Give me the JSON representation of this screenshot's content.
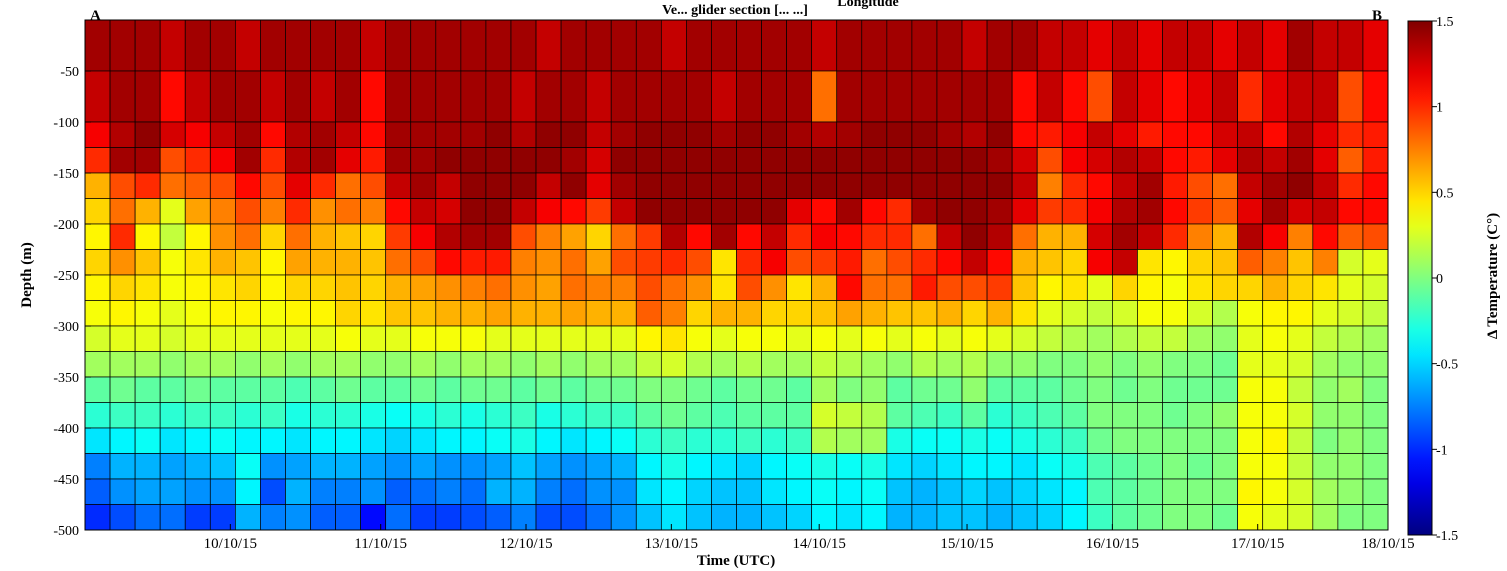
{
  "chart_data": {
    "type": "heatmap",
    "title": "Longitude",
    "title_partial": "Ve... glider section [... ...]",
    "corner_left": "A",
    "corner_right": "B",
    "xlabel": "Time (UTC)",
    "ylabel": "Depth (m)",
    "colorbar_label": "Δ Temperature (C°)",
    "colormap": "jet",
    "clim": [
      -1.5,
      1.5
    ],
    "colorbar_ticks": [
      "1.5",
      "1",
      "0.5",
      "0",
      "-0.5",
      "-1",
      "-1.5"
    ],
    "colorbar_tick_values": [
      1.5,
      1,
      0.5,
      0,
      -0.5,
      -1,
      -1.5
    ],
    "xlim": [
      0,
      52
    ],
    "x_ticks": [
      {
        "label": "10/10/15",
        "value": 5.8
      },
      {
        "label": "11/10/15",
        "value": 11.8
      },
      {
        "label": "12/10/15",
        "value": 17.6
      },
      {
        "label": "13/10/15",
        "value": 23.4
      },
      {
        "label": "14/10/15",
        "value": 29.3
      },
      {
        "label": "15/10/15",
        "value": 35.2
      },
      {
        "label": "16/10/15",
        "value": 41.0
      },
      {
        "label": "17/10/15",
        "value": 46.8
      },
      {
        "label": "18/10/15",
        "value": 52.0
      }
    ],
    "ylim": [
      -500,
      0
    ],
    "y_ticks": [
      "-50",
      "-100",
      "-150",
      "-200",
      "-250",
      "-300",
      "-350",
      "-400",
      "-450",
      "-500"
    ],
    "y_tick_values": [
      -50,
      -100,
      -150,
      -200,
      -250,
      -300,
      -350,
      -400,
      -450,
      -500
    ],
    "profiles": 52,
    "depth_bins_lower": [
      -50,
      -100,
      -125,
      -150,
      -175,
      -200,
      -225,
      -250,
      -275,
      -300,
      -325,
      -350,
      -375,
      -400,
      -425,
      -450,
      -475,
      -500
    ],
    "depth_bins_upper": [
      0,
      -50,
      -100,
      -125,
      -150,
      -175,
      -200,
      -225,
      -250,
      -275,
      -300,
      -325,
      -350,
      -375,
      -400,
      -425,
      -450,
      -475
    ],
    "values_by_depth": [
      [
        1.4,
        1.4,
        1.4,
        1.3,
        1.4,
        1.4,
        1.3,
        1.4,
        1.4,
        1.4,
        1.4,
        1.3,
        1.4,
        1.4,
        1.4,
        1.4,
        1.4,
        1.4,
        1.3,
        1.4,
        1.4,
        1.4,
        1.4,
        1.3,
        1.4,
        1.4,
        1.4,
        1.4,
        1.4,
        1.3,
        1.4,
        1.4,
        1.4,
        1.4,
        1.4,
        1.3,
        1.4,
        1.4,
        1.3,
        1.3,
        1.2,
        1.3,
        1.2,
        1.3,
        1.3,
        1.2,
        1.3,
        1.2,
        1.4,
        1.3,
        1.3,
        1.2
      ],
      [
        1.3,
        1.4,
        1.4,
        1.1,
        1.3,
        1.4,
        1.4,
        1.3,
        1.4,
        1.3,
        1.4,
        1.1,
        1.4,
        1.4,
        1.4,
        1.4,
        1.4,
        1.3,
        1.4,
        1.4,
        1.3,
        1.4,
        1.4,
        1.4,
        1.4,
        1.3,
        1.4,
        1.4,
        1.4,
        0.8,
        1.4,
        1.4,
        1.4,
        1.4,
        1.4,
        1.4,
        1.4,
        1.1,
        1.3,
        1.1,
        0.9,
        1.3,
        1.2,
        1.1,
        1.2,
        1.3,
        1.0,
        1.2,
        1.3,
        1.3,
        0.9,
        1.1
      ],
      [
        1.15,
        1.35,
        1.45,
        1.25,
        1.15,
        1.3,
        1.4,
        1.1,
        1.35,
        1.4,
        1.3,
        1.1,
        1.4,
        1.4,
        1.4,
        1.4,
        1.45,
        1.35,
        1.45,
        1.45,
        1.3,
        1.4,
        1.45,
        1.45,
        1.45,
        1.4,
        1.45,
        1.45,
        1.4,
        1.35,
        1.4,
        1.45,
        1.45,
        1.45,
        1.4,
        1.35,
        1.45,
        1.1,
        1.05,
        1.15,
        1.3,
        1.2,
        1.05,
        1.1,
        1.1,
        1.25,
        1.3,
        1.1,
        1.35,
        1.2,
        1.0,
        1.05
      ],
      [
        1.0,
        1.4,
        1.4,
        0.9,
        1.0,
        1.15,
        1.4,
        1.0,
        1.35,
        1.4,
        1.2,
        1.05,
        1.4,
        1.4,
        1.45,
        1.45,
        1.45,
        1.45,
        1.45,
        1.4,
        1.25,
        1.45,
        1.45,
        1.45,
        1.45,
        1.45,
        1.45,
        1.45,
        1.45,
        1.45,
        1.45,
        1.45,
        1.45,
        1.45,
        1.45,
        1.45,
        1.4,
        1.25,
        0.9,
        1.15,
        1.25,
        1.35,
        1.3,
        1.1,
        1.05,
        1.2,
        1.35,
        1.3,
        1.4,
        1.2,
        0.85,
        1.05
      ],
      [
        0.6,
        0.9,
        1.0,
        0.8,
        0.85,
        0.9,
        1.1,
        0.9,
        1.2,
        1.0,
        0.8,
        0.9,
        1.3,
        1.4,
        1.3,
        1.45,
        1.45,
        1.45,
        1.3,
        1.45,
        1.2,
        1.4,
        1.45,
        1.45,
        1.45,
        1.45,
        1.45,
        1.45,
        1.45,
        1.45,
        1.45,
        1.45,
        1.45,
        1.45,
        1.45,
        1.45,
        1.45,
        1.3,
        0.75,
        1.0,
        1.1,
        1.3,
        1.4,
        1.05,
        0.9,
        0.8,
        1.3,
        1.4,
        1.45,
        1.3,
        1.0,
        1.1
      ],
      [
        0.5,
        0.8,
        0.6,
        0.3,
        0.65,
        0.75,
        0.9,
        0.75,
        1.0,
        0.7,
        0.8,
        0.75,
        1.1,
        1.3,
        1.25,
        1.45,
        1.45,
        1.3,
        1.15,
        1.1,
        0.95,
        1.3,
        1.45,
        1.45,
        1.45,
        1.45,
        1.45,
        1.45,
        1.2,
        1.1,
        1.4,
        1.1,
        1.0,
        1.4,
        1.45,
        1.45,
        1.4,
        1.2,
        0.95,
        1.0,
        1.15,
        1.35,
        1.4,
        1.1,
        0.95,
        0.85,
        1.2,
        1.4,
        1.25,
        1.3,
        1.1,
        1.1
      ],
      [
        0.4,
        1.0,
        0.4,
        0.2,
        0.4,
        0.7,
        0.8,
        0.5,
        0.8,
        0.6,
        0.55,
        0.5,
        0.95,
        1.15,
        1.35,
        1.4,
        1.4,
        0.9,
        0.75,
        0.65,
        0.5,
        0.8,
        0.95,
        1.35,
        1.1,
        1.4,
        1.1,
        1.3,
        1.0,
        1.15,
        1.1,
        1.0,
        1.0,
        0.8,
        1.3,
        1.45,
        1.35,
        0.8,
        0.6,
        0.6,
        1.25,
        1.4,
        1.3,
        1.0,
        0.75,
        0.6,
        1.35,
        1.15,
        0.75,
        1.1,
        0.85,
        0.9
      ],
      [
        0.5,
        0.7,
        0.55,
        0.35,
        0.45,
        0.6,
        0.55,
        0.4,
        0.65,
        0.6,
        0.6,
        0.55,
        0.8,
        0.9,
        1.1,
        1.05,
        1.05,
        0.75,
        0.7,
        0.8,
        0.65,
        0.9,
        0.95,
        1.0,
        0.9,
        0.45,
        1.0,
        1.15,
        0.9,
        0.95,
        1.05,
        0.8,
        0.9,
        1.0,
        1.1,
        1.3,
        1.1,
        0.6,
        0.55,
        0.5,
        1.15,
        1.3,
        0.45,
        0.4,
        0.5,
        0.55,
        0.85,
        0.75,
        0.55,
        0.75,
        0.25,
        0.3
      ],
      [
        0.4,
        0.5,
        0.45,
        0.35,
        0.4,
        0.45,
        0.5,
        0.4,
        0.5,
        0.5,
        0.55,
        0.5,
        0.6,
        0.65,
        0.7,
        0.75,
        0.8,
        0.7,
        0.65,
        0.8,
        0.75,
        0.75,
        0.9,
        0.8,
        0.7,
        0.45,
        0.9,
        0.7,
        0.45,
        0.6,
        1.1,
        0.8,
        0.8,
        1.05,
        0.9,
        0.9,
        0.95,
        0.55,
        0.4,
        0.45,
        0.3,
        0.5,
        0.4,
        0.35,
        0.45,
        0.5,
        0.5,
        0.6,
        0.5,
        0.45,
        0.3,
        0.25
      ],
      [
        0.35,
        0.4,
        0.35,
        0.3,
        0.35,
        0.4,
        0.4,
        0.35,
        0.4,
        0.4,
        0.5,
        0.45,
        0.55,
        0.55,
        0.6,
        0.6,
        0.65,
        0.6,
        0.6,
        0.65,
        0.6,
        0.6,
        0.85,
        0.75,
        0.5,
        0.6,
        0.6,
        0.5,
        0.5,
        0.55,
        0.65,
        0.6,
        0.55,
        0.55,
        0.6,
        0.5,
        0.6,
        0.45,
        0.3,
        0.25,
        0.2,
        0.25,
        0.35,
        0.35,
        0.25,
        0.15,
        0.35,
        0.4,
        0.4,
        0.3,
        0.25,
        0.2
      ],
      [
        0.25,
        0.3,
        0.3,
        0.25,
        0.3,
        0.3,
        0.3,
        0.3,
        0.3,
        0.3,
        0.35,
        0.3,
        0.3,
        0.35,
        0.35,
        0.35,
        0.3,
        0.3,
        0.3,
        0.3,
        0.3,
        0.3,
        0.4,
        0.45,
        0.35,
        0.3,
        0.35,
        0.35,
        0.3,
        0.35,
        0.3,
        0.35,
        0.3,
        0.35,
        0.3,
        0.35,
        0.3,
        0.25,
        0.2,
        0.15,
        0.1,
        0.15,
        0.2,
        0.2,
        0.1,
        0.05,
        0.3,
        0.35,
        0.3,
        0.2,
        0.15,
        0.1
      ],
      [
        0.1,
        0.1,
        0.1,
        0.05,
        0.1,
        0.1,
        0.05,
        0.1,
        0.05,
        0.1,
        0.1,
        0.05,
        0.05,
        0.1,
        0.05,
        0.1,
        0.1,
        0.05,
        0.1,
        0.05,
        0.1,
        0.1,
        0.2,
        0.25,
        0.15,
        0.1,
        0.15,
        0.1,
        0.1,
        0.2,
        0.15,
        0.1,
        0.05,
        0.15,
        0.1,
        0.15,
        0.05,
        0.05,
        0.0,
        0.0,
        0.05,
        0.0,
        0.05,
        0.0,
        0.0,
        -0.05,
        0.3,
        0.3,
        0.25,
        0.1,
        0.05,
        0.05
      ],
      [
        -0.1,
        -0.05,
        -0.1,
        -0.1,
        -0.05,
        -0.1,
        -0.1,
        -0.1,
        -0.15,
        -0.1,
        -0.05,
        -0.1,
        -0.1,
        -0.05,
        -0.1,
        -0.05,
        -0.05,
        -0.1,
        -0.05,
        -0.1,
        -0.05,
        -0.05,
        0.0,
        0.0,
        -0.05,
        -0.1,
        -0.05,
        -0.05,
        -0.1,
        0.1,
        0.0,
        0.05,
        -0.1,
        -0.05,
        -0.05,
        0.05,
        -0.1,
        -0.1,
        -0.1,
        -0.05,
        0.0,
        -0.05,
        0.0,
        -0.05,
        -0.05,
        -0.05,
        0.35,
        0.35,
        0.2,
        0.05,
        0.1,
        0.0
      ],
      [
        -0.25,
        -0.2,
        -0.2,
        -0.25,
        -0.2,
        -0.2,
        -0.25,
        -0.2,
        -0.3,
        -0.25,
        -0.25,
        -0.3,
        -0.35,
        -0.3,
        -0.25,
        -0.3,
        -0.25,
        -0.2,
        -0.3,
        -0.25,
        -0.2,
        -0.2,
        -0.1,
        -0.05,
        -0.1,
        -0.15,
        -0.1,
        -0.1,
        -0.1,
        0.25,
        0.2,
        0.15,
        -0.1,
        -0.15,
        -0.2,
        -0.1,
        -0.25,
        -0.2,
        -0.15,
        -0.1,
        0.0,
        0.0,
        0.0,
        -0.05,
        0.0,
        0.05,
        0.35,
        0.35,
        0.25,
        0.05,
        0.05,
        0.0
      ],
      [
        -0.45,
        -0.4,
        -0.35,
        -0.45,
        -0.4,
        -0.35,
        -0.4,
        -0.4,
        -0.45,
        -0.4,
        -0.4,
        -0.45,
        -0.5,
        -0.45,
        -0.4,
        -0.4,
        -0.35,
        -0.3,
        -0.4,
        -0.45,
        -0.4,
        -0.35,
        -0.25,
        -0.2,
        -0.25,
        -0.25,
        -0.2,
        -0.25,
        -0.2,
        0.15,
        0.1,
        0.1,
        -0.3,
        -0.35,
        -0.35,
        -0.3,
        -0.35,
        -0.3,
        -0.25,
        -0.2,
        -0.05,
        0.0,
        0.0,
        0.0,
        0.0,
        0.0,
        0.35,
        0.4,
        0.2,
        0.0,
        0.05,
        0.0
      ],
      [
        -0.75,
        -0.6,
        -0.6,
        -0.65,
        -0.6,
        -0.55,
        -0.35,
        -0.7,
        -0.65,
        -0.6,
        -0.6,
        -0.65,
        -0.7,
        -0.65,
        -0.7,
        -0.7,
        -0.65,
        -0.55,
        -0.65,
        -0.7,
        -0.65,
        -0.6,
        -0.4,
        -0.3,
        -0.4,
        -0.45,
        -0.5,
        -0.4,
        -0.35,
        -0.3,
        -0.35,
        -0.3,
        -0.45,
        -0.5,
        -0.45,
        -0.4,
        -0.4,
        -0.45,
        -0.35,
        -0.3,
        -0.15,
        -0.1,
        -0.05,
        0.0,
        -0.05,
        0.0,
        0.35,
        0.35,
        0.2,
        0.05,
        0.05,
        0.0
      ],
      [
        -0.85,
        -0.7,
        -0.65,
        -0.65,
        -0.7,
        -0.7,
        -0.4,
        -0.9,
        -0.6,
        -0.75,
        -0.75,
        -0.7,
        -0.85,
        -0.8,
        -0.75,
        -0.8,
        -0.6,
        -0.6,
        -0.75,
        -0.8,
        -0.7,
        -0.7,
        -0.45,
        -0.4,
        -0.5,
        -0.55,
        -0.55,
        -0.45,
        -0.4,
        -0.35,
        -0.4,
        -0.35,
        -0.55,
        -0.6,
        -0.55,
        -0.5,
        -0.55,
        -0.5,
        -0.45,
        -0.4,
        -0.15,
        -0.1,
        -0.05,
        0.0,
        0.0,
        0.0,
        0.4,
        0.35,
        0.25,
        0.1,
        0.05,
        0.0
      ],
      [
        -1.0,
        -0.9,
        -0.8,
        -0.8,
        -0.95,
        -0.95,
        -0.6,
        -0.75,
        -0.7,
        -0.85,
        -0.85,
        -1.1,
        -0.8,
        -0.95,
        -0.95,
        -0.9,
        -0.85,
        -0.75,
        -0.9,
        -0.9,
        -0.8,
        -0.7,
        -0.55,
        -0.45,
        -0.55,
        -0.6,
        -0.6,
        -0.55,
        -0.5,
        -0.4,
        -0.45,
        -0.4,
        -0.6,
        -0.6,
        -0.55,
        -0.55,
        -0.6,
        -0.55,
        -0.5,
        -0.4,
        -0.2,
        -0.1,
        -0.05,
        0.0,
        0.0,
        -0.05,
        0.35,
        0.3,
        0.25,
        0.1,
        0.0,
        0.0
      ]
    ]
  }
}
